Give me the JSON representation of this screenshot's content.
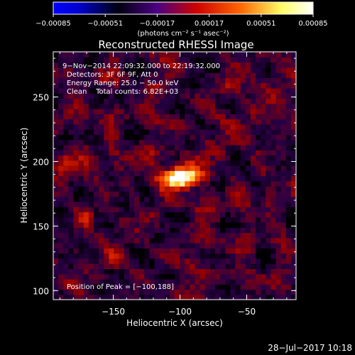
{
  "chart_data": {
    "type": "heatmap",
    "title": "Reconstructed RHESSI Image",
    "xlabel": "Heliocentric X (arcsec)",
    "ylabel": "Heliocentric Y (arcsec)",
    "xlim": [
      -195,
      -13
    ],
    "ylim": [
      93,
      285
    ],
    "x_ticks": [
      -150,
      -100,
      -50
    ],
    "y_ticks": [
      100,
      150,
      200,
      250
    ],
    "x_tick_labels": [
      "−150",
      "−100",
      "−50"
    ],
    "y_tick_labels": [
      "100",
      "150",
      "200",
      "250"
    ],
    "colorbar": {
      "range": [
        -0.00085,
        0.00085
      ],
      "ticks": [
        -0.00085,
        -0.00051,
        -0.00017,
        0.00017,
        0.00051,
        0.00085
      ],
      "tick_labels": [
        "−0.00085",
        "−0.00051",
        "−0.00017",
        "0.00017",
        "0.00051",
        "0.00085"
      ],
      "units": "(photons cm⁻² s⁻¹ asec⁻²)",
      "colormap": "rainbow-to-hot",
      "colors": [
        "#0000ff",
        "#000000",
        "#4b0082",
        "#cc0000",
        "#ff6600",
        "#ffff66",
        "#ffffff"
      ]
    },
    "annotations": [
      "9−Nov−2014 22:09:32.000 to 22:19:32.000",
      "Detectors: 3F 6F 9F, Att 0",
      "Energy Range: 25.0 − 50.0 keV",
      "Clean    Total counts: 6.82E+03",
      "Position of Peak = [−100,188]"
    ],
    "peak": {
      "x": -100,
      "y": 188,
      "value": 0.00085
    },
    "background_level": 0.00018,
    "secondary_sources": [
      {
        "x": -170,
        "y": 158,
        "value": 0.0004
      },
      {
        "x": -150,
        "y": 125,
        "value": 0.00035
      },
      {
        "x": -185,
        "y": 200,
        "value": 0.00038
      },
      {
        "x": -60,
        "y": 260,
        "value": 0.00032
      }
    ]
  },
  "footer": {
    "timestamp": "28−Jul−2017 10:18"
  }
}
